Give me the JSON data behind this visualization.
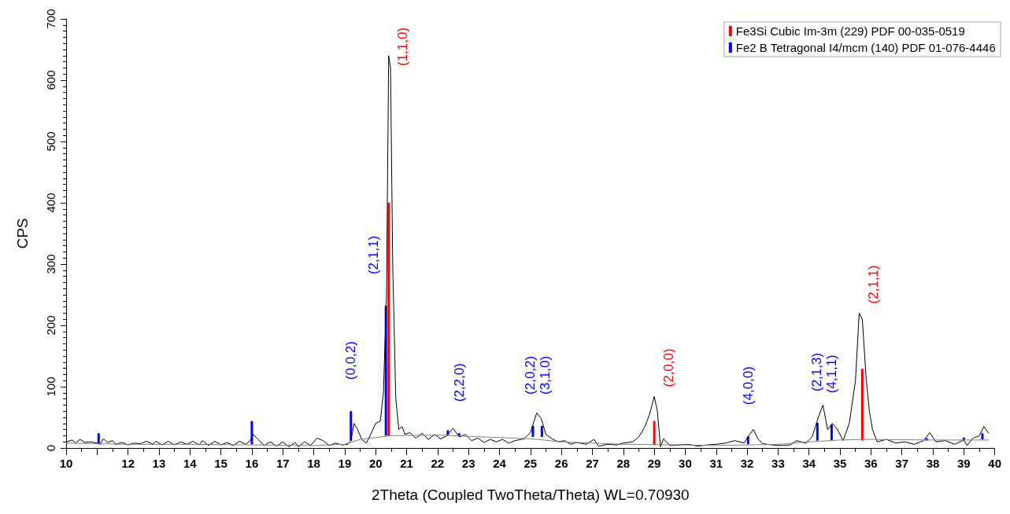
{
  "chart_data": {
    "type": "line",
    "xlabel": "2Theta (Coupled TwoTheta/Theta) WL=0.70930",
    "ylabel": "CPS",
    "xlim": [
      10,
      40
    ],
    "xticks": [
      10,
      {
        "value": 11,
        "label": null
      },
      12,
      13,
      14,
      15,
      16,
      17,
      18,
      19,
      20,
      21,
      22,
      23,
      24,
      25,
      26,
      27,
      28,
      29,
      30,
      31,
      32,
      33,
      34,
      35,
      36,
      37,
      38,
      39,
      40
    ],
    "ylim": [
      0,
      700
    ],
    "yticks": [
      0,
      100,
      200,
      300,
      400,
      500,
      600,
      700
    ],
    "grid": false,
    "legend": "top right",
    "marker": "none",
    "line_style": "solid",
    "series": [
      {
        "color": "#000000",
        "x": [
          10,
          10.2,
          10.3,
          10.45,
          10.6,
          10.8,
          11.0,
          11.1,
          11.2,
          11.35,
          11.5,
          11.6,
          11.8,
          12.0,
          12.2,
          12.4,
          12.6,
          12.8,
          12.9,
          13.1,
          13.3,
          13.5,
          13.7,
          13.9,
          14.1,
          14.3,
          14.4,
          14.6,
          14.8,
          15.0,
          15.2,
          15.4,
          15.6,
          15.8,
          15.95,
          16.05,
          16.2,
          16.4,
          16.6,
          16.8,
          17.0,
          17.2,
          17.4,
          17.5,
          17.7,
          17.9,
          18.1,
          18.3,
          18.5,
          18.7,
          18.9,
          19.1,
          19.2,
          19.3,
          19.4,
          19.55,
          19.7,
          19.8,
          20.0,
          20.15,
          20.25,
          20.35,
          20.42,
          20.48,
          20.55,
          20.65,
          20.75,
          20.85,
          20.95,
          21.1,
          21.3,
          21.5,
          21.7,
          21.9,
          22.1,
          22.3,
          22.5,
          22.7,
          22.9,
          23.1,
          23.3,
          23.5,
          23.7,
          23.9,
          24.1,
          24.3,
          24.5,
          24.8,
          25.0,
          25.2,
          25.35,
          25.5,
          25.7,
          25.9,
          26.1,
          26.3,
          26.5,
          26.8,
          27.05,
          27.2,
          27.5,
          27.8,
          28.0,
          28.3,
          28.5,
          28.7,
          28.85,
          29.0,
          29.1,
          29.2,
          29.3,
          29.5,
          29.8,
          30.1,
          30.4,
          30.7,
          31.0,
          31.3,
          31.6,
          31.9,
          32.05,
          32.2,
          32.35,
          32.5,
          32.8,
          33.1,
          33.4,
          33.6,
          33.9,
          34.1,
          34.3,
          34.45,
          34.6,
          34.75,
          34.9,
          35.1,
          35.3,
          35.5,
          35.62,
          35.72,
          35.85,
          35.95,
          36.05,
          36.2,
          36.5,
          36.8,
          37.1,
          37.4,
          37.7,
          37.9,
          38.1,
          38.4,
          38.7,
          39.0,
          39.1,
          39.3,
          39.5,
          39.65,
          39.8
        ],
        "values": [
          10,
          13,
          8,
          14,
          9,
          10,
          8,
          6,
          15,
          9,
          12,
          6,
          9,
          5,
          8,
          7,
          11,
          6,
          11,
          5,
          11,
          5,
          10,
          6,
          11,
          5,
          12,
          4,
          11,
          5,
          9,
          4,
          11,
          6,
          12,
          22,
          14,
          4,
          10,
          3,
          10,
          2,
          9,
          2,
          10,
          4,
          16,
          12,
          4,
          8,
          5,
          6,
          12,
          40,
          32,
          14,
          8,
          18,
          40,
          44,
          90,
          250,
          640,
          620,
          300,
          80,
          30,
          35,
          22,
          25,
          16,
          24,
          14,
          22,
          15,
          20,
          32,
          18,
          22,
          12,
          16,
          9,
          14,
          10,
          14,
          8,
          12,
          15,
          25,
          57,
          48,
          22,
          15,
          10,
          12,
          6,
          9,
          6,
          14,
          3,
          6,
          5,
          8,
          10,
          18,
          35,
          55,
          84,
          60,
          2,
          15,
          4,
          5,
          6,
          3,
          5,
          6,
          8,
          12,
          8,
          20,
          30,
          15,
          7,
          5,
          4,
          5,
          12,
          8,
          18,
          50,
          70,
          30,
          40,
          32,
          12,
          40,
          110,
          220,
          210,
          110,
          60,
          30,
          10,
          14,
          8,
          10,
          6,
          12,
          25,
          10,
          12,
          6,
          13,
          4,
          16,
          20,
          35,
          24
        ]
      },
      {
        "color": "#808080",
        "x": [
          10,
          12,
          14,
          16,
          18,
          19,
          19.5,
          20,
          20.5,
          22,
          23,
          24,
          25,
          26,
          27,
          28,
          30,
          31,
          33,
          34,
          35,
          36,
          38,
          39.8
        ],
        "values": [
          8,
          6,
          6,
          5,
          4,
          6,
          14,
          17,
          20,
          21,
          19,
          17,
          15,
          10,
          8,
          6,
          5,
          4,
          6,
          10,
          13,
          14,
          13,
          13
        ]
      },
      {
        "type": "bar",
        "name": "Fe3Si Cubic Im-3m (229) PDF 00-035-0519",
        "color": "#ff0000",
        "x": [
          20.42,
          29.0,
          35.72
        ],
        "base": [
          20,
          5,
          12
        ],
        "values": [
          380,
          39,
          117
        ]
      },
      {
        "type": "bar",
        "name": "Fe2 B Tetragonal I4/mcm (140) PDF 01-076-4446",
        "color": "#0000ff",
        "x": [
          11.05,
          16.0,
          19.2,
          20.33,
          22.33,
          22.7,
          25.08,
          25.37,
          32.03,
          34.27,
          34.73,
          37.8,
          39.0,
          39.6
        ],
        "base": [
          6,
          6,
          12,
          20,
          21,
          20,
          18,
          18,
          6,
          12,
          13,
          12,
          13,
          14
        ],
        "values": [
          18,
          38,
          48,
          212,
          8,
          4,
          18,
          18,
          13,
          29,
          25,
          4,
          4,
          10
        ]
      }
    ],
    "annotations": [
      {
        "text": "(1,1,0)",
        "x": 20.42,
        "y": 640
      },
      {
        "text": "(2,1,1)",
        "x": 20.33,
        "y": 232
      },
      {
        "text": "(0,0,2)",
        "x": 19.2,
        "y": 60
      },
      {
        "text": "(2,2,0)",
        "x": 22.7,
        "y": 24
      },
      {
        "text": "(2,0,2)",
        "x": 25.08,
        "y": 36
      },
      {
        "text": "(3,1,0)",
        "x": 25.37,
        "y": 36
      },
      {
        "text": "(2,0,0)",
        "x": 29.0,
        "y": 84
      },
      {
        "text": "(4,0,0)",
        "x": 32.03,
        "y": 19
      },
      {
        "text": "(2,1,3)",
        "x": 34.27,
        "y": 41
      },
      {
        "text": "(4,1,1)",
        "x": 34.73,
        "y": 38
      },
      {
        "text": "(2,1,1)",
        "x": 35.62,
        "y": 220
      }
    ]
  }
}
